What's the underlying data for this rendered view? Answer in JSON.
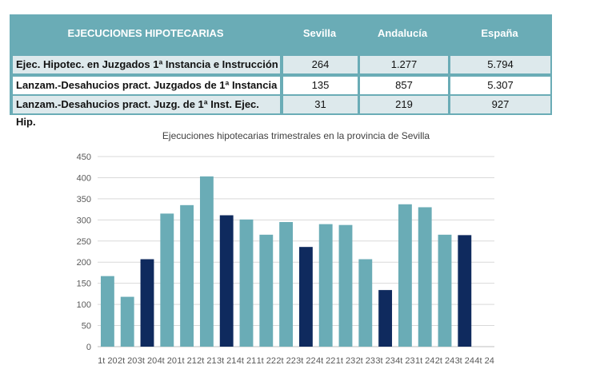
{
  "table": {
    "headers": [
      "EJECUCIONES HIPOTECARIAS",
      "Sevilla",
      "Andalucía",
      "España"
    ],
    "rows": [
      {
        "label": "Ejec. Hipotec. en Juzgados 1ª Instancia e Instrucción",
        "sevilla": "264",
        "andalucia": "1.277",
        "espana": "5.794"
      },
      {
        "label": "Lanzam.-Desahucios pract. Juzgados de 1ª Instancia",
        "sevilla": "135",
        "andalucia": "857",
        "espana": "5.307"
      },
      {
        "label": "Lanzam.-Desahucios pract. Juzg. de 1ª Inst. Ejec. Hip.",
        "sevilla": "31",
        "andalucia": "219",
        "espana": "927"
      }
    ]
  },
  "colors": {
    "header_bg": "#6aacb6",
    "bar_light": "#6aacb6",
    "bar_dark": "#0f2a5e",
    "alt_row": "#dde9ec"
  },
  "chart_data": {
    "type": "bar",
    "title": "Ejecuciones hipotecarias trimestrales en la provincia de Sevilla",
    "xlabel": "",
    "ylabel": "",
    "ylim": [
      0,
      450
    ],
    "yticks": [
      0,
      50,
      100,
      150,
      200,
      250,
      300,
      350,
      400,
      450
    ],
    "grid": true,
    "categories": [
      "1t 20",
      "2t 20",
      "3t 20",
      "4t 20",
      "1t 21",
      "2t 21",
      "3t 21",
      "4t 21",
      "1t 22",
      "2t 22",
      "3t 22",
      "4t 22",
      "1t 23",
      "2t 23",
      "3t 23",
      "4t 23",
      "1t 24",
      "2t 24",
      "3t 24",
      "4t 24"
    ],
    "values": [
      167,
      118,
      207,
      315,
      335,
      403,
      311,
      301,
      265,
      295,
      236,
      290,
      288,
      207,
      134,
      337,
      330,
      265,
      264,
      0
    ],
    "highlight": [
      false,
      false,
      true,
      false,
      false,
      false,
      true,
      false,
      false,
      false,
      true,
      false,
      false,
      false,
      true,
      false,
      false,
      false,
      true,
      false
    ]
  }
}
